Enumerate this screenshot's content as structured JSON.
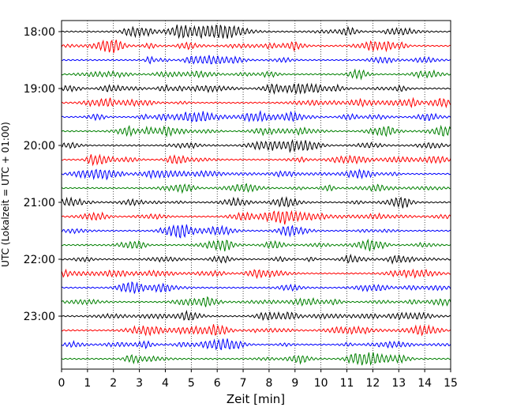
{
  "chart_data": {
    "type": "line",
    "title": "",
    "xlabel": "Zeit  [min]",
    "ylabel": "UTC (Lokalzeit = UTC + 01:00)",
    "xlim": [
      0,
      15
    ],
    "x_ticks": [
      "0",
      "1",
      "2",
      "3",
      "4",
      "5",
      "6",
      "7",
      "8",
      "9",
      "10",
      "11",
      "12",
      "13",
      "14",
      "15"
    ],
    "y_tick_labels": [
      "18:00",
      "19:00",
      "20:00",
      "21:00",
      "22:00",
      "23:00"
    ],
    "grid": "vertical dotted lines at each minute",
    "trace_colors": [
      "#000000",
      "#ff0000",
      "#0000ff",
      "#008000"
    ],
    "traces": [
      {
        "start": "18:00",
        "color": "#000000"
      },
      {
        "start": "18:15",
        "color": "#ff0000"
      },
      {
        "start": "18:30",
        "color": "#0000ff"
      },
      {
        "start": "18:45",
        "color": "#008000"
      },
      {
        "start": "19:00",
        "color": "#000000"
      },
      {
        "start": "19:15",
        "color": "#ff0000"
      },
      {
        "start": "19:30",
        "color": "#0000ff"
      },
      {
        "start": "19:45",
        "color": "#008000"
      },
      {
        "start": "20:00",
        "color": "#000000"
      },
      {
        "start": "20:15",
        "color": "#ff0000"
      },
      {
        "start": "20:30",
        "color": "#0000ff"
      },
      {
        "start": "20:45",
        "color": "#008000"
      },
      {
        "start": "21:00",
        "color": "#000000"
      },
      {
        "start": "21:15",
        "color": "#ff0000"
      },
      {
        "start": "21:30",
        "color": "#0000ff"
      },
      {
        "start": "21:45",
        "color": "#008000"
      },
      {
        "start": "22:00",
        "color": "#000000"
      },
      {
        "start": "22:15",
        "color": "#ff0000"
      },
      {
        "start": "22:30",
        "color": "#0000ff"
      },
      {
        "start": "22:45",
        "color": "#008000"
      },
      {
        "start": "23:00",
        "color": "#000000"
      },
      {
        "start": "23:15",
        "color": "#ff0000"
      },
      {
        "start": "23:30",
        "color": "#0000ff"
      },
      {
        "start": "23:45",
        "color": "#008000"
      }
    ]
  }
}
